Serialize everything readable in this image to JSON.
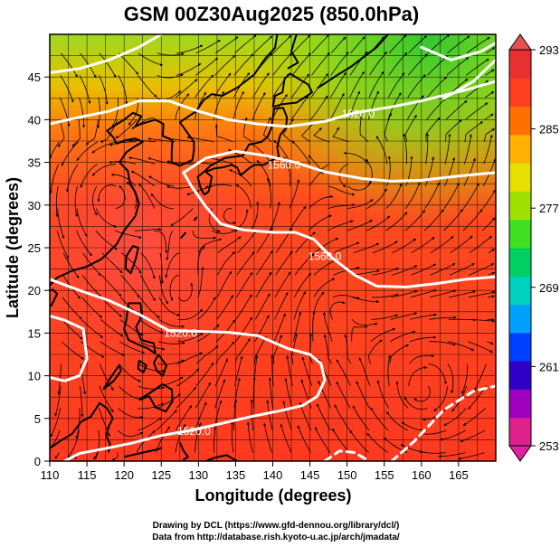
{
  "title": "GSM 00Z30Aug2025 (850.0hPa)",
  "x_axis": {
    "label": "Longitude (degrees)",
    "min": 110,
    "max": 170,
    "ticks": [
      "110",
      "115",
      "120",
      "125",
      "130",
      "135",
      "140",
      "145",
      "150",
      "155",
      "160",
      "165"
    ]
  },
  "y_axis": {
    "label": "Latitude (degrees)",
    "min": 0,
    "max": 50,
    "ticks": [
      "0",
      "5",
      "10",
      "15",
      "20",
      "25",
      "30",
      "35",
      "40",
      "45"
    ]
  },
  "colorbar": {
    "min": 253,
    "max": 293,
    "labels": [
      "293",
      "285",
      "277",
      "269",
      "261",
      "253"
    ],
    "colors": [
      "#e0208c",
      "#a000c0",
      "#3000c8",
      "#0040ff",
      "#00a0ff",
      "#00d0c0",
      "#00d060",
      "#40e020",
      "#a0e000",
      "#e8e000",
      "#ffb000",
      "#ff7000",
      "#ff4020",
      "#e83030"
    ]
  },
  "contour_labels": [
    {
      "text": "1520.0",
      "lon": 127.6,
      "lat": 15.0
    },
    {
      "text": "1520.0",
      "lon": 129.4,
      "lat": 3.5
    },
    {
      "text": "1560.0",
      "lon": 141.5,
      "lat": 34.7
    },
    {
      "text": "1560.0",
      "lon": 147.0,
      "lat": 24.0
    },
    {
      "text": "1520.0",
      "lon": 151.5,
      "lat": 40.7
    }
  ],
  "credits": {
    "line1": "Drawing by DCL (https://www.gfd-dennou.org/library/dcl/)",
    "line2": "Data from http://database.rish.kyoto-u.ac.jp/arch/jmadata/"
  }
}
